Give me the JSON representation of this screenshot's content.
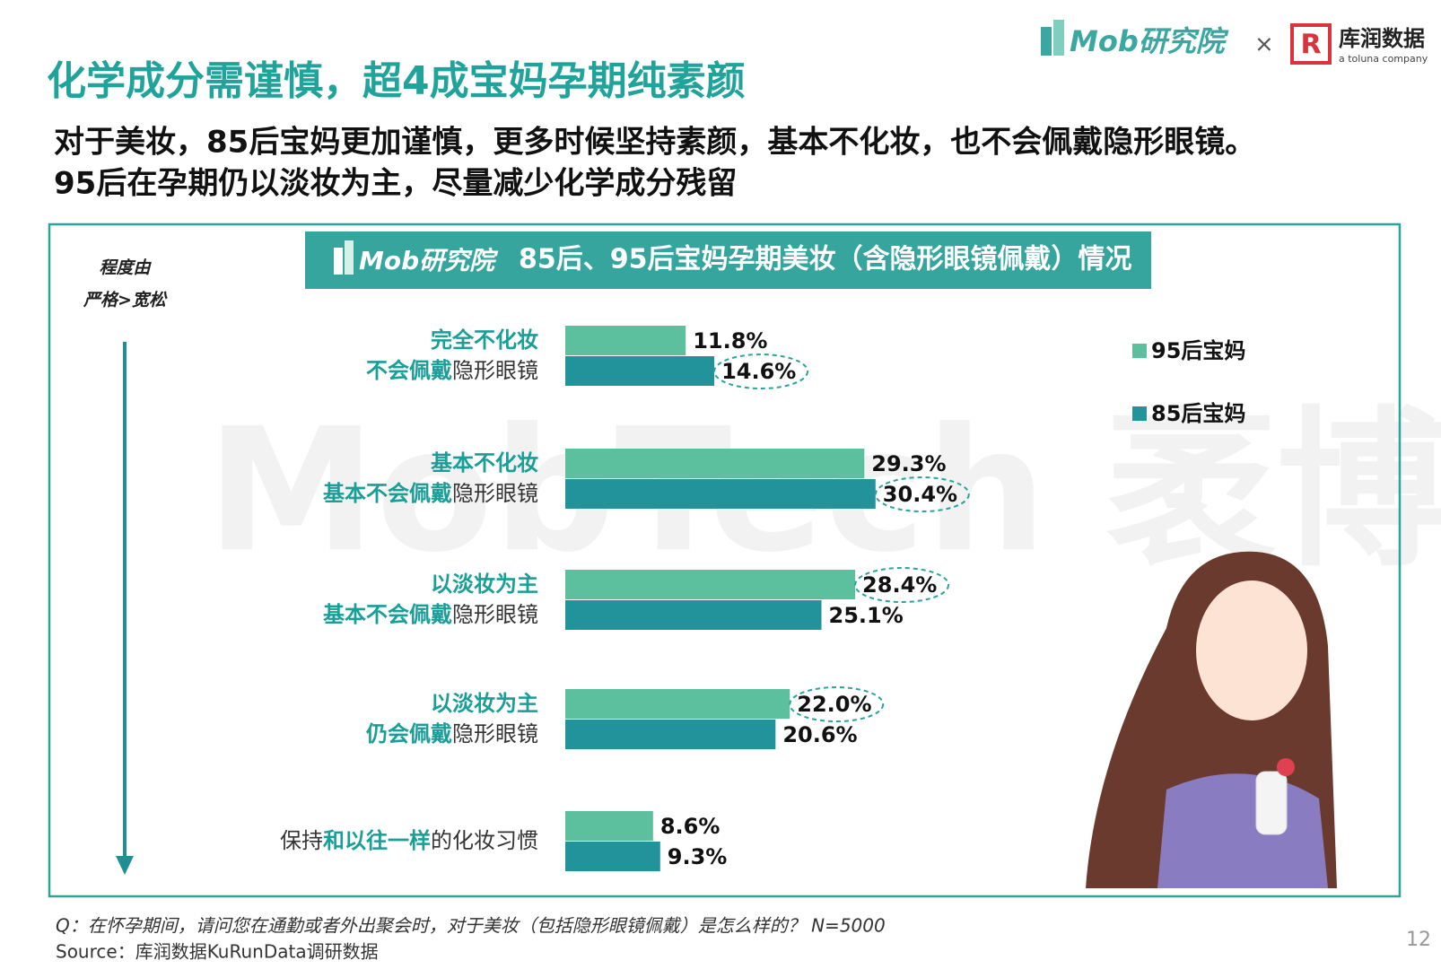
{
  "header": {
    "logo_mob": "Mob研究院",
    "times": "×",
    "logo_kr": "库润数据",
    "logo_kr_sub": "a toluna company",
    "title": "化学成分需谨慎，超4成宝妈孕期纯素颜",
    "subtitle": [
      "对于美妆，85后宝妈更加谨慎，更多时候坚持素颜，基本不化妆，也不会佩戴隐形眼镜。",
      "95后在孕期仍以淡妆为主，尽量减少化学成分残留"
    ]
  },
  "watermark": "MobTech 袤博",
  "chart_data": {
    "type": "bar",
    "orientation": "horizontal",
    "logo": "Mob研究院",
    "title": "85后、95后宝妈孕期美妆（含隐形眼镜佩戴）情况",
    "scale_note": [
      "程度由",
      "严格>宽松"
    ],
    "categories": [
      [
        [
          {
            "text": "完全不化妆",
            "highlight": true
          }
        ],
        [
          {
            "text": "不会佩戴",
            "highlight": true
          },
          {
            "text": "隐形眼镜",
            "highlight": false
          }
        ]
      ],
      [
        [
          {
            "text": "基本不化妆",
            "highlight": true
          }
        ],
        [
          {
            "text": "基本不会佩戴",
            "highlight": true
          },
          {
            "text": "隐形眼镜",
            "highlight": false
          }
        ]
      ],
      [
        [
          {
            "text": "以淡妆为主",
            "highlight": true
          }
        ],
        [
          {
            "text": "基本不会佩戴",
            "highlight": true
          },
          {
            "text": "隐形眼镜",
            "highlight": false
          }
        ]
      ],
      [
        [
          {
            "text": "以淡妆为主",
            "highlight": true
          }
        ],
        [
          {
            "text": "仍会佩戴",
            "highlight": true
          },
          {
            "text": "隐形眼镜",
            "highlight": false
          }
        ]
      ],
      [
        [
          {
            "text": "保持",
            "highlight": false
          },
          {
            "text": "和以往一样",
            "highlight": true
          },
          {
            "text": "的化妆习惯",
            "highlight": false
          }
        ]
      ]
    ],
    "series": [
      {
        "name": "95后宝妈",
        "color": "#5cbf9e",
        "values": [
          11.8,
          29.3,
          28.4,
          22.0,
          8.6
        ],
        "value_labels": [
          "11.8%",
          "29.3%",
          "28.4%",
          "22.0%",
          "8.6%"
        ],
        "circled": [
          false,
          false,
          true,
          true,
          false
        ]
      },
      {
        "name": "85后宝妈",
        "color": "#22939a",
        "values": [
          14.6,
          30.4,
          25.1,
          20.6,
          9.3
        ],
        "value_labels": [
          "14.6%",
          "30.4%",
          "25.1%",
          "20.6%",
          "9.3%"
        ],
        "circled": [
          true,
          true,
          false,
          false,
          false
        ]
      }
    ],
    "xlim": [
      0,
      40
    ],
    "legend_position": "right"
  },
  "footer": {
    "question": "Q：在怀孕期间，请问您在通勤或者外出聚会时，对于美妆（包括隐形眼镜佩戴）是怎么样的？ N=5000",
    "source": "Source：库润数据KuRunData调研数据",
    "page": "12"
  }
}
